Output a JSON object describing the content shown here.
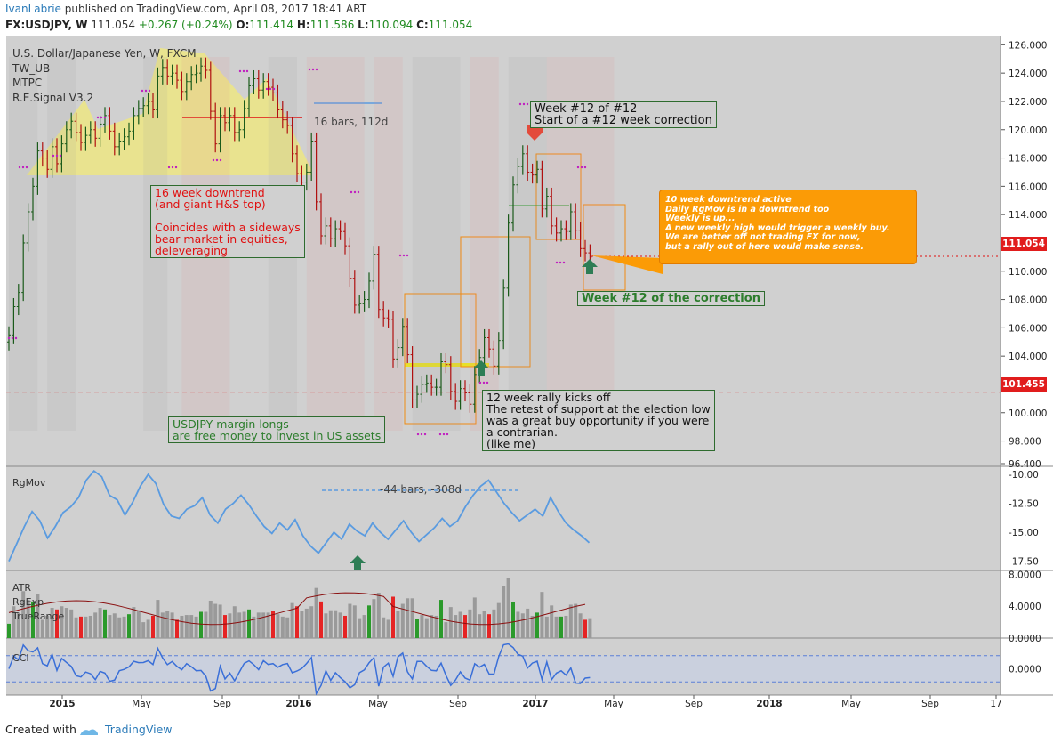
{
  "header": {
    "author": "IvanLabrie",
    "published": "published on TradingView.com, April 08, 2017 18:41 ART",
    "symbol": "FX:USDJPY, W",
    "last": "111.054",
    "change": "+0.267 (+0.24%)",
    "open_label": "O:",
    "open": "111.414",
    "high_label": "H:",
    "high": "111.586",
    "low_label": "L:",
    "low": "110.094",
    "close_label": "C:",
    "close": "111.054"
  },
  "legend": {
    "title": "U.S. Dollar/Japanese Yen, W, FXCM",
    "studies": [
      "TW_UB",
      "MTPC",
      "R.E.Signal V3.2"
    ]
  },
  "annotations": {
    "week12_title": "Week #12 of #12\nStart of a #12 week correction",
    "downtrend": "16 week downtrend\n(and giant H&S top)\n\nCoincides with a sideways\nbear market in equities,\ndeleveraging",
    "margin": "USDJPY margin longs\nare free money to invest in US assets",
    "rally": "12 week rally kicks off\nThe retest of support at the election low\nwas a great buy opportunity if you were\na contrarian.\n(like me)",
    "week12_corr": "Week #12 of the correction",
    "orange_note": "10 week downtrend active\nDaily RgMov is in a downtrend too\nWeekly is up...\nA new weekly high would trigger a weekly buy.\nWe are better off not trading FX for now,\nbut a rally out of here would make sense.",
    "measure_top": "16 bars, 112d",
    "measure_rgmov": "-44 bars, -308d"
  },
  "price_tags": {
    "last": "111.054",
    "support": "101.455"
  },
  "indicators": {
    "rgmov_label": "RgMov",
    "atr_labels": [
      "ATR",
      "RgExp",
      "TrueRange"
    ],
    "cci_label": "CCI",
    "rgmov_ticks": [
      "-10.00",
      "-12.50",
      "-15.00",
      "-17.50"
    ],
    "atr_ticks": [
      "8.0000",
      "4.0000",
      "0.0000"
    ],
    "cci_ticks": [
      "0.0000"
    ]
  },
  "colors": {
    "up": "#2b8a2b",
    "down": "#e01010",
    "bg": "#d0d0d0",
    "rgmov": "#5a9be0",
    "cci": "#3a6fd8",
    "orange": "#fb9b06"
  },
  "footer": {
    "created": "Created with",
    "brand": "TradingView"
  },
  "chart_data": {
    "type": "candlestick",
    "title": "U.S. Dollar/Japanese Yen, W, FXCM",
    "ylim": [
      96.4,
      126.4
    ],
    "y_ticks": [
      "126.000",
      "124.000",
      "122.000",
      "120.000",
      "118.000",
      "116.000",
      "114.000",
      "112.000",
      "110.000",
      "108.000",
      "106.000",
      "104.000",
      "102.000",
      "100.000",
      "98.000",
      "96.400"
    ],
    "x_ticks": [
      "2015",
      "Mar",
      "May",
      "Jul",
      "Sep",
      "Nov",
      "2016",
      "Mar",
      "May",
      "Jul",
      "Sep",
      "Nov",
      "2017",
      "Mar",
      "May",
      "Jul",
      "Sep",
      "Nov",
      "2018",
      "Mar",
      "May",
      "Jul",
      "Sep",
      "Nov",
      "17"
    ],
    "x_tick_labels_visible": [
      "2015",
      "May",
      "Sep",
      "2016",
      "May",
      "Sep",
      "2017",
      "May",
      "Sep",
      "2018",
      "May",
      "Sep",
      "17"
    ],
    "support_level": 101.455,
    "last_price": 111.054,
    "closes": [
      105.5,
      107.5,
      108.5,
      112.0,
      114.2,
      116.0,
      118.5,
      118.0,
      117.2,
      118.8,
      117.6,
      119.0,
      120.0,
      120.6,
      119.8,
      119.1,
      119.6,
      120.0,
      119.4,
      120.4,
      121.0,
      119.9,
      118.8,
      119.2,
      119.5,
      119.9,
      121.0,
      121.5,
      121.7,
      122.0,
      121.4,
      123.8,
      124.4,
      123.8,
      124.0,
      123.5,
      122.7,
      123.4,
      123.9,
      124.0,
      124.5,
      124.2,
      121.3,
      119.0,
      121.0,
      120.5,
      121.0,
      119.8,
      120.0,
      121.5,
      123.1,
      123.6,
      122.8,
      123.4,
      123.0,
      122.6,
      121.4,
      120.7,
      120.3,
      118.3,
      116.9,
      116.3,
      117.0,
      119.2,
      114.9,
      112.5,
      113.2,
      112.3,
      113.0,
      112.8,
      111.8,
      109.5,
      107.6,
      107.7,
      108.0,
      109.3,
      111.2,
      107.3,
      106.7,
      106.6,
      103.8,
      104.6,
      106.1,
      104.1,
      100.9,
      101.3,
      102.0,
      102.1,
      101.8,
      101.8,
      103.6,
      103.4,
      101.5,
      100.8,
      101.7,
      101.4,
      100.6,
      102.7,
      103.9,
      105.3,
      104.5,
      103.3,
      105.1,
      108.8,
      113.4,
      116.1,
      117.4,
      118.3,
      117.0,
      116.8,
      117.2,
      114.4,
      115.3,
      113.2,
      112.7,
      113.0,
      112.8,
      114.2,
      112.9,
      111.6,
      111.3,
      111.0
    ],
    "rgmov_ylim": [
      -18.3,
      -9.3
    ],
    "atr_ylim": [
      0,
      8.5
    ],
    "cci_ylim": [
      -200,
      200
    ]
  }
}
